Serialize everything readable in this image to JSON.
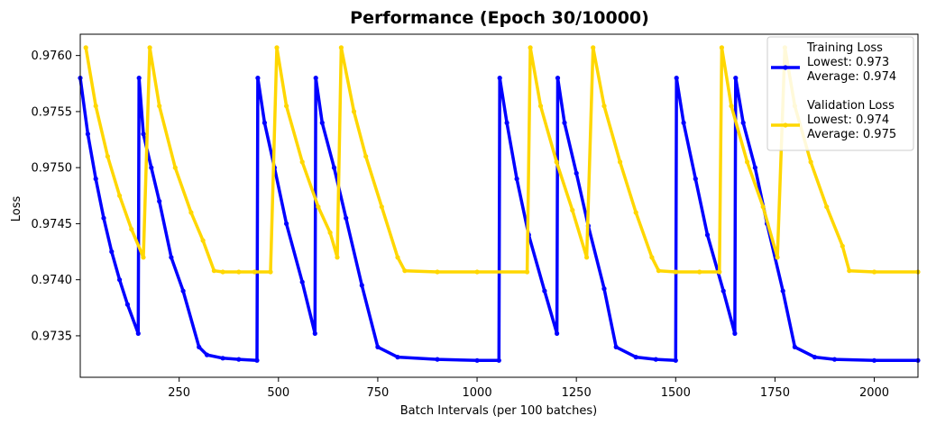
{
  "chart_data": {
    "type": "line",
    "title": "Performance (Epoch 30/10000)",
    "xlabel": "Batch Intervals (per 100 batches)",
    "ylabel": "Loss",
    "xlim": [
      1,
      2110
    ],
    "ylim": [
      0.97313,
      0.97619
    ],
    "xticks": [
      250,
      500,
      750,
      1000,
      1250,
      1500,
      1750,
      2000
    ],
    "yticks": [
      0.9735,
      0.974,
      0.9745,
      0.975,
      0.9755,
      0.976
    ],
    "ytick_labels": [
      "0.9735",
      "0.9740",
      "0.9745",
      "0.9750",
      "0.9755",
      "0.9760"
    ],
    "grid": false,
    "legend_position": "top-right",
    "series": [
      {
        "name": "Training Loss",
        "color": "#0000ff",
        "legend_lines": [
          "Training Loss",
          "Lowest: 0.973",
          "Average: 0.974"
        ],
        "points": [
          [
            1,
            0.9758
          ],
          [
            20,
            0.9753
          ],
          [
            40,
            0.9749
          ],
          [
            60,
            0.97455
          ],
          [
            80,
            0.97425
          ],
          [
            100,
            0.974
          ],
          [
            120,
            0.97378
          ],
          [
            147,
            0.97352
          ],
          [
            149,
            0.9758
          ],
          [
            160,
            0.9753
          ],
          [
            180,
            0.975
          ],
          [
            200,
            0.9747
          ],
          [
            230,
            0.9742
          ],
          [
            260,
            0.9739
          ],
          [
            300,
            0.9734
          ],
          [
            320,
            0.97333
          ],
          [
            360,
            0.9733
          ],
          [
            400,
            0.97329
          ],
          [
            446,
            0.97328
          ],
          [
            448,
            0.9758
          ],
          [
            465,
            0.9754
          ],
          [
            490,
            0.975
          ],
          [
            520,
            0.9745
          ],
          [
            560,
            0.97398
          ],
          [
            592,
            0.97352
          ],
          [
            594,
            0.9758
          ],
          [
            610,
            0.9754
          ],
          [
            640,
            0.975
          ],
          [
            670,
            0.97455
          ],
          [
            710,
            0.97395
          ],
          [
            750,
            0.9734
          ],
          [
            800,
            0.97331
          ],
          [
            900,
            0.97329
          ],
          [
            1000,
            0.97328
          ],
          [
            1055,
            0.97328
          ],
          [
            1057,
            0.9758
          ],
          [
            1075,
            0.9754
          ],
          [
            1100,
            0.9749
          ],
          [
            1130,
            0.9744
          ],
          [
            1170,
            0.9739
          ],
          [
            1201,
            0.97352
          ],
          [
            1203,
            0.9758
          ],
          [
            1220,
            0.9754
          ],
          [
            1250,
            0.97495
          ],
          [
            1280,
            0.97448
          ],
          [
            1320,
            0.97392
          ],
          [
            1350,
            0.9734
          ],
          [
            1400,
            0.97331
          ],
          [
            1450,
            0.97329
          ],
          [
            1500,
            0.97328
          ],
          [
            1502,
            0.9758
          ],
          [
            1520,
            0.9754
          ],
          [
            1550,
            0.9749
          ],
          [
            1580,
            0.9744
          ],
          [
            1620,
            0.9739
          ],
          [
            1649,
            0.97352
          ],
          [
            1651,
            0.9758
          ],
          [
            1670,
            0.9754
          ],
          [
            1700,
            0.975
          ],
          [
            1730,
            0.9745
          ],
          [
            1770,
            0.9739
          ],
          [
            1800,
            0.9734
          ],
          [
            1850,
            0.97331
          ],
          [
            1900,
            0.97329
          ],
          [
            2000,
            0.97328
          ],
          [
            2110,
            0.97328
          ]
        ]
      },
      {
        "name": "Validation Loss",
        "color": "#ffd700",
        "legend_lines": [
          "Validation Loss",
          "Lowest: 0.974",
          "Average: 0.975"
        ],
        "points": [
          [
            15,
            0.97607
          ],
          [
            40,
            0.97555
          ],
          [
            70,
            0.9751
          ],
          [
            100,
            0.97475
          ],
          [
            130,
            0.97445
          ],
          [
            160,
            0.9742
          ],
          [
            176,
            0.97607
          ],
          [
            200,
            0.97555
          ],
          [
            240,
            0.975
          ],
          [
            280,
            0.9746
          ],
          [
            310,
            0.97435
          ],
          [
            338,
            0.97408
          ],
          [
            360,
            0.97407
          ],
          [
            400,
            0.97407
          ],
          [
            440,
            0.97407
          ],
          [
            480,
            0.97407
          ],
          [
            496,
            0.97607
          ],
          [
            520,
            0.97555
          ],
          [
            560,
            0.97505
          ],
          [
            600,
            0.97465
          ],
          [
            630,
            0.97442
          ],
          [
            648,
            0.9742
          ],
          [
            658,
            0.97607
          ],
          [
            690,
            0.9755
          ],
          [
            720,
            0.9751
          ],
          [
            760,
            0.97465
          ],
          [
            800,
            0.9742
          ],
          [
            818,
            0.97408
          ],
          [
            900,
            0.97407
          ],
          [
            1000,
            0.97407
          ],
          [
            1126,
            0.97407
          ],
          [
            1134,
            0.97607
          ],
          [
            1160,
            0.97555
          ],
          [
            1200,
            0.97505
          ],
          [
            1240,
            0.97462
          ],
          [
            1276,
            0.9742
          ],
          [
            1292,
            0.97607
          ],
          [
            1320,
            0.97555
          ],
          [
            1360,
            0.97505
          ],
          [
            1400,
            0.9746
          ],
          [
            1440,
            0.9742
          ],
          [
            1457,
            0.97408
          ],
          [
            1500,
            0.97407
          ],
          [
            1560,
            0.97407
          ],
          [
            1610,
            0.97407
          ],
          [
            1616,
            0.97607
          ],
          [
            1640,
            0.97555
          ],
          [
            1680,
            0.97505
          ],
          [
            1720,
            0.97465
          ],
          [
            1756,
            0.9742
          ],
          [
            1775,
            0.97607
          ],
          [
            1800,
            0.97555
          ],
          [
            1840,
            0.97505
          ],
          [
            1880,
            0.97465
          ],
          [
            1920,
            0.9743
          ],
          [
            1937,
            0.97408
          ],
          [
            2000,
            0.97407
          ],
          [
            2110,
            0.97407
          ]
        ]
      }
    ]
  }
}
